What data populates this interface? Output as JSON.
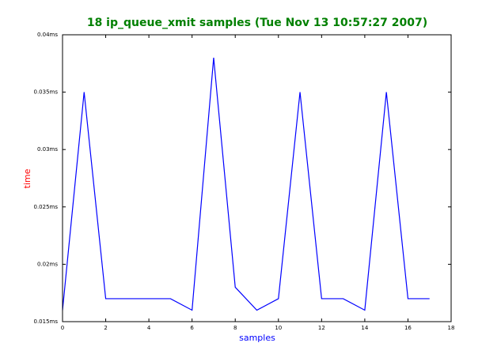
{
  "chart_data": {
    "type": "line",
    "title": "18 ip_queue_xmit samples (Tue Nov 13 10:57:27 2007)",
    "xlabel": "samples",
    "ylabel": "time",
    "x": [
      0,
      1,
      2,
      3,
      4,
      5,
      6,
      7,
      8,
      9,
      10,
      11,
      12,
      13,
      14,
      15,
      16,
      17
    ],
    "values": [
      0.016,
      0.035,
      0.017,
      0.017,
      0.017,
      0.017,
      0.016,
      0.038,
      0.018,
      0.016,
      0.017,
      0.035,
      0.017,
      0.017,
      0.016,
      0.035,
      0.017,
      0.017
    ],
    "color": "#0000ff",
    "xlim": [
      0,
      18
    ],
    "xticks": [
      0,
      2,
      4,
      6,
      8,
      10,
      12,
      14,
      16,
      18
    ],
    "ylim": [
      0.015,
      0.04
    ],
    "yticks": [
      {
        "value": 0.015,
        "label": "0.015ms"
      },
      {
        "value": 0.02,
        "label": "0.02ms"
      },
      {
        "value": 0.025,
        "label": "0.025ms"
      },
      {
        "value": 0.03,
        "label": "0.03ms"
      },
      {
        "value": 0.035,
        "label": "0.035ms"
      },
      {
        "value": 0.04,
        "label": "0.04ms"
      }
    ],
    "grid": false
  }
}
